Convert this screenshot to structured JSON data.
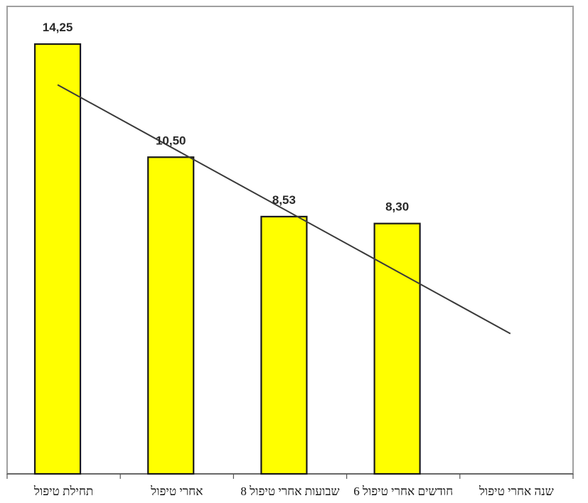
{
  "chart_data": {
    "type": "bar",
    "categories": [
      "תחילת טיפול",
      "אחרי טיפול",
      "8 שבועות אחרי טיפול",
      "6 חודשים אחרי טיפול",
      "שנה אחרי טיפול"
    ],
    "values": [
      14.25,
      10.5,
      8.53,
      8.3,
      null
    ],
    "value_labels": [
      "14,25",
      "10,50",
      "8,53",
      "8,30",
      ""
    ],
    "trendline": {
      "start": 12.9,
      "end": 4.65
    },
    "ylim": [
      0,
      15.5
    ],
    "title": "",
    "xlabel": "",
    "ylabel": "",
    "grid": false,
    "legend": "none",
    "colors": {
      "bar_fill": "#ffff00",
      "bar_stroke": "#1a1a1a",
      "trendline": "#3a3a3a",
      "plot_border": "#a0a0a0",
      "axis": "#555555"
    }
  }
}
